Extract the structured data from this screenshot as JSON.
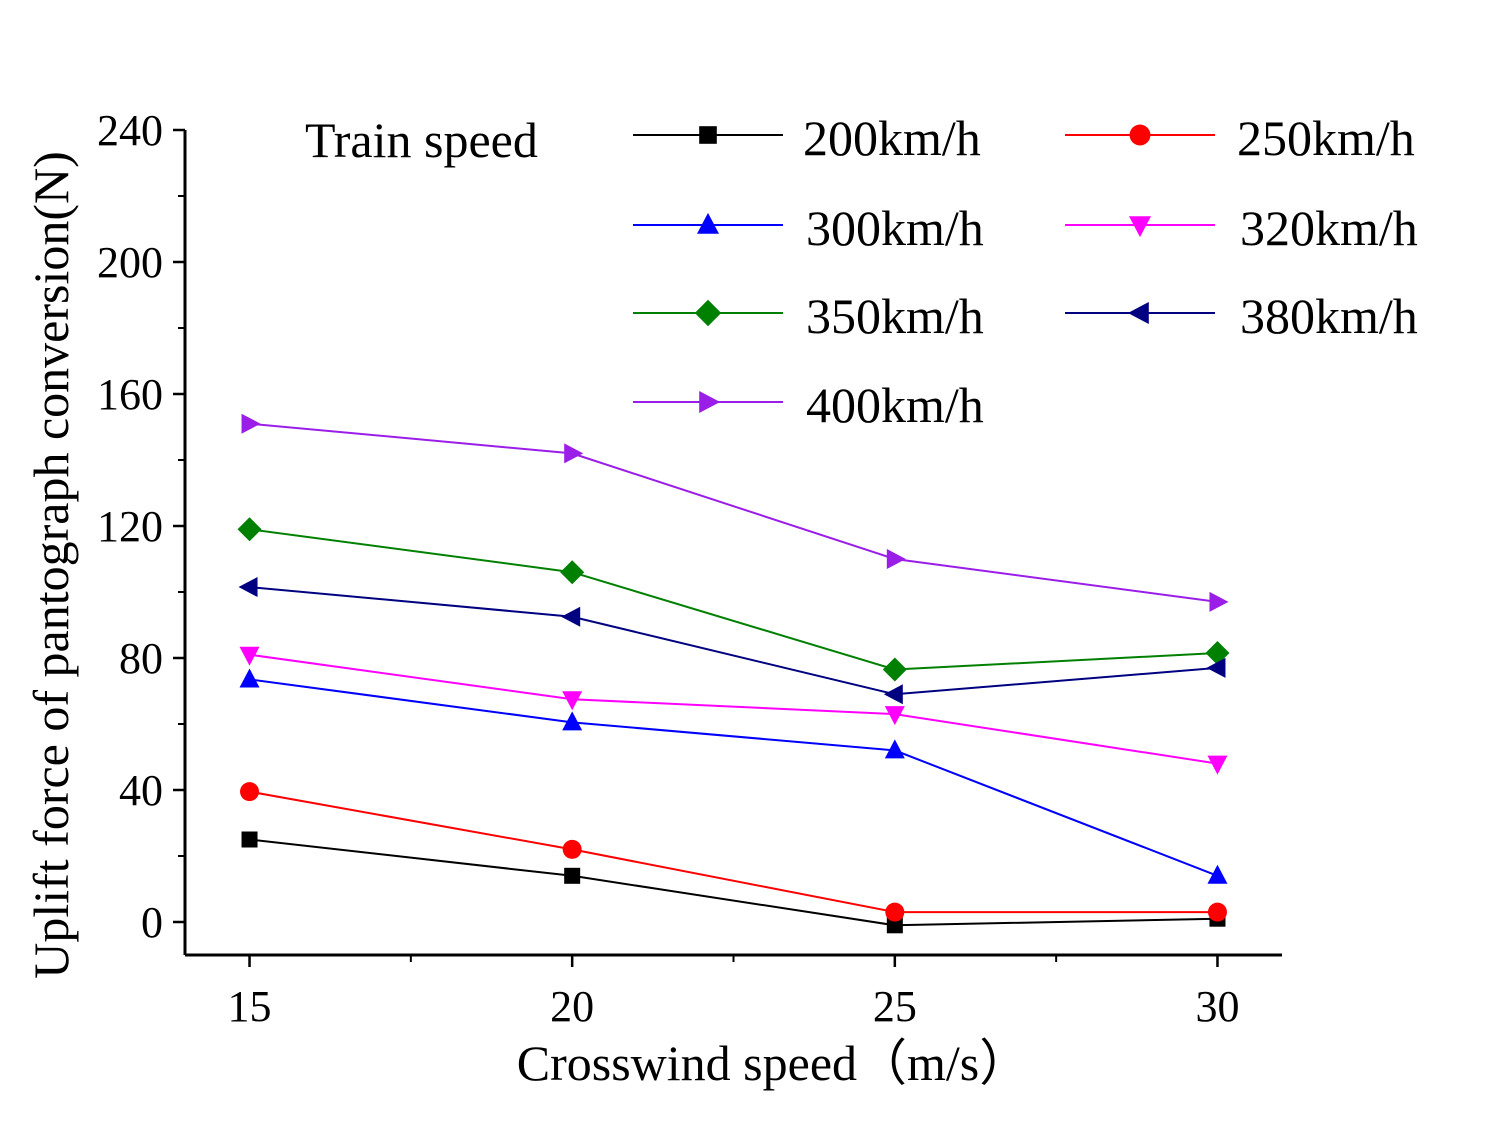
{
  "chart_data": {
    "type": "line",
    "title": "",
    "xlabel": "Crosswind speed（m/s）",
    "ylabel": "Uplift force of pantograph conversion(N)",
    "legend_title": "Train speed",
    "legend_position": "top-right",
    "x": [
      15,
      20,
      25,
      30
    ],
    "xlim": [
      14,
      31
    ],
    "ylim": [
      -10,
      240
    ],
    "xticks": [
      15,
      20,
      25,
      30
    ],
    "yticks": [
      0,
      40,
      80,
      120,
      160,
      200,
      240
    ],
    "x_tick_labels": [
      "15",
      "20",
      "25",
      "30"
    ],
    "y_tick_labels": [
      "0",
      "40",
      "80",
      "120",
      "160",
      "200",
      "240"
    ],
    "grid": false,
    "series": [
      {
        "name": "200km/h",
        "color": "#000000",
        "marker": "square",
        "values": [
          25,
          14,
          -1,
          1
        ]
      },
      {
        "name": "250km/h",
        "color": "#ff0000",
        "marker": "circle",
        "values": [
          39.5,
          22,
          3,
          3
        ]
      },
      {
        "name": "300km/h",
        "color": "#0000ff",
        "marker": "triangle-up",
        "values": [
          73.5,
          60.5,
          52,
          14
        ]
      },
      {
        "name": "320km/h",
        "color": "#ff00ff",
        "marker": "triangle-down",
        "values": [
          81,
          67.5,
          63,
          48
        ]
      },
      {
        "name": "350km/h",
        "color": "#008000",
        "marker": "diamond",
        "values": [
          119,
          106,
          76.5,
          81.5
        ]
      },
      {
        "name": "380km/h",
        "color": "#000080",
        "marker": "triangle-left",
        "values": [
          101.5,
          92.5,
          69,
          77
        ]
      },
      {
        "name": "400km/h",
        "color": "#9b1de8",
        "marker": "triangle-right",
        "values": [
          151,
          142,
          110,
          97
        ]
      }
    ]
  }
}
